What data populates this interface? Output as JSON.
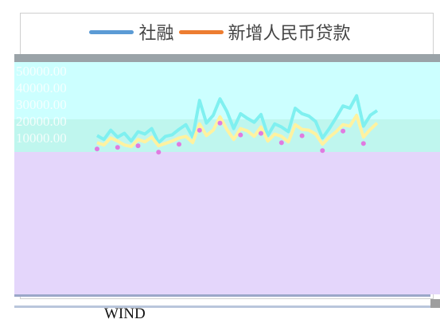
{
  "legend": {
    "items": [
      {
        "label": "社融",
        "color": "#5b9bd5"
      },
      {
        "label": "新增人民币贷款",
        "color": "#ed7d31"
      }
    ]
  },
  "source": "WIND",
  "chart_data": {
    "type": "line",
    "title": "",
    "xlabel": "",
    "ylabel": "",
    "y_ticks": [
      "50000.00",
      "40000.00",
      "30000.00",
      "20000.00",
      "10000.00"
    ],
    "ylim": [
      0,
      60000
    ],
    "grid": false,
    "legend_position": "top",
    "series": [
      {
        "name": "社融",
        "color": "#5b9bd5",
        "values": [
          13000,
          10500,
          16500,
          12000,
          14500,
          9500,
          15500,
          14000,
          17500,
          8500,
          12500,
          13500,
          17000,
          20000,
          12000,
          35500,
          21000,
          26000,
          36500,
          28500,
          17500,
          27000,
          24000,
          21500,
          26500,
          13000,
          20500,
          18500,
          15500,
          30500,
          27000,
          25500,
          22000,
          11500,
          17500,
          24500,
          32000,
          30500,
          38500,
          19000,
          26000,
          29000
        ]
      },
      {
        "name": "新增人民币贷款",
        "color": "#ed7d31",
        "values": [
          8500,
          7000,
          11500,
          9500,
          7000,
          6000,
          10500,
          9000,
          12000,
          6500,
          8000,
          9500,
          11500,
          12500,
          8500,
          20500,
          13000,
          16500,
          25000,
          17000,
          10500,
          17500,
          16000,
          12500,
          18500,
          9500,
          14000,
          12500,
          9000,
          20000,
          17000,
          16500,
          14000,
          7500,
          12000,
          15500,
          20000,
          19000,
          26000,
          12000,
          17000,
          21000
        ]
      }
    ]
  }
}
